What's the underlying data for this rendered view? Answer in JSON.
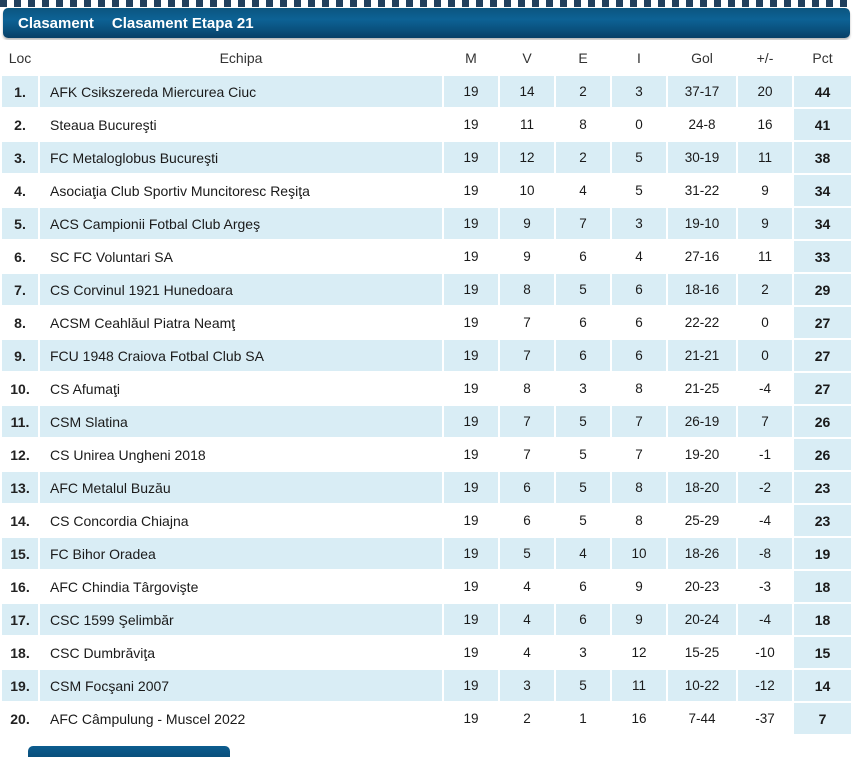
{
  "header": {
    "tab": "Clasament",
    "title": "Clasament Etapa 21"
  },
  "columns": [
    "Loc",
    "Echipa",
    "M",
    "V",
    "E",
    "I",
    "Gol",
    "+/-",
    "Pct"
  ],
  "rows": [
    {
      "loc": "1.",
      "team": "AFK Csikszereda Miercurea Ciuc",
      "m": "19",
      "v": "14",
      "e": "2",
      "i": "3",
      "gol": "37-17",
      "diff": "20",
      "pct": "44"
    },
    {
      "loc": "2.",
      "team": "Steaua Bucureşti",
      "m": "19",
      "v": "11",
      "e": "8",
      "i": "0",
      "gol": "24-8",
      "diff": "16",
      "pct": "41"
    },
    {
      "loc": "3.",
      "team": "FC Metaloglobus Bucureşti",
      "m": "19",
      "v": "12",
      "e": "2",
      "i": "5",
      "gol": "30-19",
      "diff": "11",
      "pct": "38"
    },
    {
      "loc": "4.",
      "team": "Asociaţia Club Sportiv Muncitoresc Reşiţa",
      "m": "19",
      "v": "10",
      "e": "4",
      "i": "5",
      "gol": "31-22",
      "diff": "9",
      "pct": "34"
    },
    {
      "loc": "5.",
      "team": "ACS Campionii Fotbal Club Argeş",
      "m": "19",
      "v": "9",
      "e": "7",
      "i": "3",
      "gol": "19-10",
      "diff": "9",
      "pct": "34"
    },
    {
      "loc": "6.",
      "team": "SC FC Voluntari SA",
      "m": "19",
      "v": "9",
      "e": "6",
      "i": "4",
      "gol": "27-16",
      "diff": "11",
      "pct": "33"
    },
    {
      "loc": "7.",
      "team": "CS Corvinul 1921 Hunedoara",
      "m": "19",
      "v": "8",
      "e": "5",
      "i": "6",
      "gol": "18-16",
      "diff": "2",
      "pct": "29"
    },
    {
      "loc": "8.",
      "team": "ACSM Ceahlăul Piatra Neamţ",
      "m": "19",
      "v": "7",
      "e": "6",
      "i": "6",
      "gol": "22-22",
      "diff": "0",
      "pct": "27"
    },
    {
      "loc": "9.",
      "team": "FCU 1948 Craiova Fotbal Club SA",
      "m": "19",
      "v": "7",
      "e": "6",
      "i": "6",
      "gol": "21-21",
      "diff": "0",
      "pct": "27"
    },
    {
      "loc": "10.",
      "team": "CS Afumaţi",
      "m": "19",
      "v": "8",
      "e": "3",
      "i": "8",
      "gol": "21-25",
      "diff": "-4",
      "pct": "27"
    },
    {
      "loc": "11.",
      "team": "CSM Slatina",
      "m": "19",
      "v": "7",
      "e": "5",
      "i": "7",
      "gol": "26-19",
      "diff": "7",
      "pct": "26"
    },
    {
      "loc": "12.",
      "team": "CS Unirea Ungheni 2018",
      "m": "19",
      "v": "7",
      "e": "5",
      "i": "7",
      "gol": "19-20",
      "diff": "-1",
      "pct": "26"
    },
    {
      "loc": "13.",
      "team": "AFC Metalul Buzău",
      "m": "19",
      "v": "6",
      "e": "5",
      "i": "8",
      "gol": "18-20",
      "diff": "-2",
      "pct": "23"
    },
    {
      "loc": "14.",
      "team": "CS Concordia Chiajna",
      "m": "19",
      "v": "6",
      "e": "5",
      "i": "8",
      "gol": "25-29",
      "diff": "-4",
      "pct": "23"
    },
    {
      "loc": "15.",
      "team": "FC Bihor Oradea",
      "m": "19",
      "v": "5",
      "e": "4",
      "i": "10",
      "gol": "18-26",
      "diff": "-8",
      "pct": "19"
    },
    {
      "loc": "16.",
      "team": "AFC Chindia Târgovişte",
      "m": "19",
      "v": "4",
      "e": "6",
      "i": "9",
      "gol": "20-23",
      "diff": "-3",
      "pct": "18"
    },
    {
      "loc": "17.",
      "team": "CSC 1599 Şelimbăr",
      "m": "19",
      "v": "4",
      "e": "6",
      "i": "9",
      "gol": "20-24",
      "diff": "-4",
      "pct": "18"
    },
    {
      "loc": "18.",
      "team": "CSC Dumbrăviţa",
      "m": "19",
      "v": "4",
      "e": "3",
      "i": "12",
      "gol": "15-25",
      "diff": "-10",
      "pct": "15"
    },
    {
      "loc": "19.",
      "team": "CSM Focşani 2007",
      "m": "19",
      "v": "3",
      "e": "5",
      "i": "11",
      "gol": "10-22",
      "diff": "-12",
      "pct": "14"
    },
    {
      "loc": "20.",
      "team": "AFC Câmpulung - Muscel 2022",
      "m": "19",
      "v": "2",
      "e": "1",
      "i": "16",
      "gol": "7-44",
      "diff": "-37",
      "pct": "7"
    }
  ],
  "colors": {
    "header_navy_top": "#0d6295",
    "header_navy_bottom": "#073f66",
    "row_tint": "#d9edf5",
    "dotted_pattern": "#21405d",
    "text": "#1a1a1a"
  }
}
